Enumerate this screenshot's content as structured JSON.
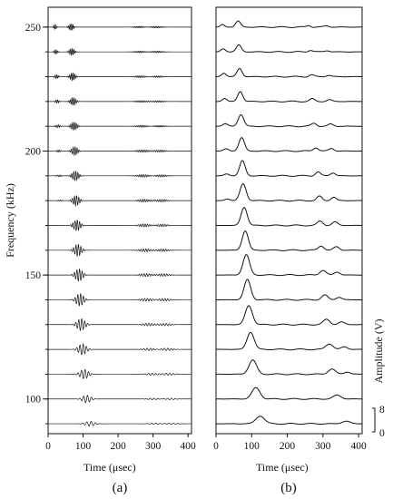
{
  "chart_data": [
    {
      "type": "line",
      "panel_label": "(a)",
      "xlabel": "Time (μsec)",
      "ylabel": "Frequency (kHz)",
      "xlim": [
        0,
        410
      ],
      "ylim": [
        86,
        258
      ],
      "xticks": [
        0,
        100,
        200,
        300,
        400
      ],
      "yticks": [
        100,
        150,
        200,
        250
      ],
      "frequencies_khz": [
        90,
        100,
        110,
        120,
        130,
        140,
        150,
        160,
        170,
        180,
        190,
        200,
        210,
        220,
        230,
        240,
        250
      ],
      "signal": "tone-burst waveforms, one trace per frequency",
      "series": [
        {
          "frequency": 250,
          "packets": [
            {
              "t": 20,
              "amp": 0.25,
              "width": 5
            },
            {
              "t": 66,
              "amp": 0.35,
              "width": 8
            },
            {
              "t": 260,
              "amp": 0.08,
              "width": 20
            },
            {
              "t": 310,
              "amp": 0.08,
              "width": 22
            }
          ]
        },
        {
          "frequency": 240,
          "packets": [
            {
              "t": 22,
              "amp": 0.22,
              "width": 6
            },
            {
              "t": 68,
              "amp": 0.36,
              "width": 9
            },
            {
              "t": 262,
              "amp": 0.08,
              "width": 20
            },
            {
              "t": 312,
              "amp": 0.08,
              "width": 22
            }
          ]
        },
        {
          "frequency": 230,
          "packets": [
            {
              "t": 24,
              "amp": 0.2,
              "width": 7
            },
            {
              "t": 70,
              "amp": 0.38,
              "width": 10
            },
            {
              "t": 264,
              "amp": 0.09,
              "width": 21
            },
            {
              "t": 314,
              "amp": 0.08,
              "width": 22
            }
          ]
        },
        {
          "frequency": 220,
          "packets": [
            {
              "t": 26,
              "amp": 0.18,
              "width": 7
            },
            {
              "t": 72,
              "amp": 0.4,
              "width": 10
            },
            {
              "t": 266,
              "amp": 0.09,
              "width": 21
            },
            {
              "t": 316,
              "amp": 0.08,
              "width": 22
            }
          ]
        },
        {
          "frequency": 210,
          "packets": [
            {
              "t": 28,
              "amp": 0.15,
              "width": 8
            },
            {
              "t": 74,
              "amp": 0.42,
              "width": 11
            },
            {
              "t": 268,
              "amp": 0.1,
              "width": 22
            },
            {
              "t": 318,
              "amp": 0.09,
              "width": 22
            }
          ]
        },
        {
          "frequency": 200,
          "packets": [
            {
              "t": 30,
              "amp": 0.12,
              "width": 8
            },
            {
              "t": 76,
              "amp": 0.44,
              "width": 11
            },
            {
              "t": 270,
              "amp": 0.12,
              "width": 22
            },
            {
              "t": 320,
              "amp": 0.1,
              "width": 22
            }
          ]
        },
        {
          "frequency": 190,
          "packets": [
            {
              "t": 32,
              "amp": 0.1,
              "width": 9
            },
            {
              "t": 78,
              "amp": 0.48,
              "width": 12
            },
            {
              "t": 272,
              "amp": 0.13,
              "width": 22
            },
            {
              "t": 322,
              "amp": 0.11,
              "width": 22
            }
          ]
        },
        {
          "frequency": 180,
          "packets": [
            {
              "t": 34,
              "amp": 0.08,
              "width": 9
            },
            {
              "t": 80,
              "amp": 0.52,
              "width": 12
            },
            {
              "t": 274,
              "amp": 0.14,
              "width": 22
            },
            {
              "t": 324,
              "amp": 0.12,
              "width": 22
            }
          ]
        },
        {
          "frequency": 170,
          "packets": [
            {
              "t": 82,
              "amp": 0.55,
              "width": 13
            },
            {
              "t": 276,
              "amp": 0.15,
              "width": 22
            },
            {
              "t": 326,
              "amp": 0.12,
              "width": 22
            }
          ]
        },
        {
          "frequency": 160,
          "packets": [
            {
              "t": 85,
              "amp": 0.6,
              "width": 13
            },
            {
              "t": 278,
              "amp": 0.15,
              "width": 22
            },
            {
              "t": 328,
              "amp": 0.13,
              "width": 22
            }
          ]
        },
        {
          "frequency": 150,
          "packets": [
            {
              "t": 88,
              "amp": 0.62,
              "width": 14
            },
            {
              "t": 280,
              "amp": 0.15,
              "width": 22
            },
            {
              "t": 330,
              "amp": 0.13,
              "width": 22
            }
          ]
        },
        {
          "frequency": 140,
          "packets": [
            {
              "t": 91,
              "amp": 0.62,
              "width": 14
            },
            {
              "t": 282,
              "amp": 0.14,
              "width": 22
            },
            {
              "t": 332,
              "amp": 0.13,
              "width": 22
            }
          ]
        },
        {
          "frequency": 130,
          "packets": [
            {
              "t": 94,
              "amp": 0.6,
              "width": 15
            },
            {
              "t": 286,
              "amp": 0.13,
              "width": 22
            },
            {
              "t": 336,
              "amp": 0.12,
              "width": 22
            }
          ]
        },
        {
          "frequency": 120,
          "packets": [
            {
              "t": 98,
              "amp": 0.55,
              "width": 15
            },
            {
              "t": 290,
              "amp": 0.12,
              "width": 22
            },
            {
              "t": 340,
              "amp": 0.12,
              "width": 22
            }
          ]
        },
        {
          "frequency": 110,
          "packets": [
            {
              "t": 103,
              "amp": 0.48,
              "width": 16
            },
            {
              "t": 295,
              "amp": 0.1,
              "width": 22
            },
            {
              "t": 345,
              "amp": 0.1,
              "width": 22
            }
          ]
        },
        {
          "frequency": 100,
          "packets": [
            {
              "t": 110,
              "amp": 0.38,
              "width": 16
            },
            {
              "t": 300,
              "amp": 0.08,
              "width": 22
            },
            {
              "t": 350,
              "amp": 0.08,
              "width": 22
            }
          ]
        },
        {
          "frequency": 90,
          "packets": [
            {
              "t": 120,
              "amp": 0.25,
              "width": 17
            },
            {
              "t": 305,
              "amp": 0.06,
              "width": 22
            },
            {
              "t": 355,
              "amp": 0.06,
              "width": 22
            }
          ]
        }
      ]
    },
    {
      "type": "line",
      "panel_label": "(b)",
      "xlabel": "Time (μsec)",
      "ylabel": "Amplitude (V)",
      "xlim": [
        0,
        410
      ],
      "xticks": [
        0,
        100,
        200,
        300,
        400
      ],
      "scale_bar": {
        "tick_labels": [
          "8",
          "0"
        ]
      },
      "signal": "envelope traces, one per frequency (same order as panel a)",
      "series": [
        {
          "frequency": 250,
          "peaks": [
            {
              "t": 18,
              "h": 0.3,
              "w": 8
            },
            {
              "t": 62,
              "h": 0.7,
              "w": 10
            },
            {
              "t": 260,
              "h": 0.2,
              "w": 8
            },
            {
              "t": 310,
              "h": 0.15,
              "w": 10
            }
          ]
        },
        {
          "frequency": 240,
          "peaks": [
            {
              "t": 20,
              "h": 0.35,
              "w": 9
            },
            {
              "t": 64,
              "h": 0.8,
              "w": 10
            },
            {
              "t": 265,
              "h": 0.2,
              "w": 9
            },
            {
              "t": 312,
              "h": 0.15,
              "w": 10
            }
          ]
        },
        {
          "frequency": 230,
          "peaks": [
            {
              "t": 22,
              "h": 0.4,
              "w": 9
            },
            {
              "t": 66,
              "h": 0.95,
              "w": 10
            },
            {
              "t": 268,
              "h": 0.22,
              "w": 9
            },
            {
              "t": 316,
              "h": 0.16,
              "w": 10
            }
          ]
        },
        {
          "frequency": 220,
          "peaks": [
            {
              "t": 24,
              "h": 0.35,
              "w": 9
            },
            {
              "t": 68,
              "h": 1.15,
              "w": 10
            },
            {
              "t": 270,
              "h": 0.3,
              "w": 10
            },
            {
              "t": 318,
              "h": 0.2,
              "w": 10
            }
          ]
        },
        {
          "frequency": 210,
          "peaks": [
            {
              "t": 26,
              "h": 0.3,
              "w": 10
            },
            {
              "t": 70,
              "h": 1.35,
              "w": 11
            },
            {
              "t": 275,
              "h": 0.35,
              "w": 10
            },
            {
              "t": 322,
              "h": 0.25,
              "w": 10
            }
          ]
        },
        {
          "frequency": 200,
          "peaks": [
            {
              "t": 28,
              "h": 0.25,
              "w": 10
            },
            {
              "t": 72,
              "h": 1.55,
              "w": 11
            },
            {
              "t": 280,
              "h": 0.4,
              "w": 10
            },
            {
              "t": 324,
              "h": 0.3,
              "w": 10
            }
          ]
        },
        {
          "frequency": 190,
          "peaks": [
            {
              "t": 30,
              "h": 0.22,
              "w": 10
            },
            {
              "t": 74,
              "h": 1.75,
              "w": 11
            },
            {
              "t": 286,
              "h": 0.45,
              "w": 10
            },
            {
              "t": 328,
              "h": 0.35,
              "w": 10
            }
          ]
        },
        {
          "frequency": 180,
          "peaks": [
            {
              "t": 32,
              "h": 0.2,
              "w": 10
            },
            {
              "t": 76,
              "h": 1.95,
              "w": 12
            },
            {
              "t": 290,
              "h": 0.5,
              "w": 10
            },
            {
              "t": 330,
              "h": 0.4,
              "w": 10
            }
          ]
        },
        {
          "frequency": 170,
          "peaks": [
            {
              "t": 79,
              "h": 2.1,
              "w": 12
            },
            {
              "t": 292,
              "h": 0.5,
              "w": 11
            },
            {
              "t": 334,
              "h": 0.4,
              "w": 11
            }
          ]
        },
        {
          "frequency": 160,
          "peaks": [
            {
              "t": 82,
              "h": 2.25,
              "w": 12
            },
            {
              "t": 295,
              "h": 0.5,
              "w": 11
            },
            {
              "t": 338,
              "h": 0.4,
              "w": 11
            }
          ]
        },
        {
          "frequency": 150,
          "peaks": [
            {
              "t": 85,
              "h": 2.35,
              "w": 13
            },
            {
              "t": 300,
              "h": 0.55,
              "w": 12
            },
            {
              "t": 340,
              "h": 0.35,
              "w": 11
            }
          ]
        },
        {
          "frequency": 140,
          "peaks": [
            {
              "t": 88,
              "h": 2.35,
              "w": 13
            },
            {
              "t": 305,
              "h": 0.55,
              "w": 12
            },
            {
              "t": 345,
              "h": 0.3,
              "w": 11
            }
          ]
        },
        {
          "frequency": 130,
          "peaks": [
            {
              "t": 92,
              "h": 2.2,
              "w": 14
            },
            {
              "t": 310,
              "h": 0.6,
              "w": 13
            },
            {
              "t": 352,
              "h": 0.3,
              "w": 12
            }
          ]
        },
        {
          "frequency": 120,
          "peaks": [
            {
              "t": 97,
              "h": 2.0,
              "w": 14
            },
            {
              "t": 318,
              "h": 0.65,
              "w": 14
            },
            {
              "t": 360,
              "h": 0.3,
              "w": 12
            }
          ]
        },
        {
          "frequency": 110,
          "peaks": [
            {
              "t": 103,
              "h": 1.65,
              "w": 15
            },
            {
              "t": 325,
              "h": 0.6,
              "w": 14
            },
            {
              "t": 368,
              "h": 0.25,
              "w": 12
            }
          ]
        },
        {
          "frequency": 100,
          "peaks": [
            {
              "t": 112,
              "h": 1.3,
              "w": 16
            },
            {
              "t": 340,
              "h": 0.45,
              "w": 15
            }
          ]
        },
        {
          "frequency": 90,
          "peaks": [
            {
              "t": 124,
              "h": 0.9,
              "w": 17
            },
            {
              "t": 365,
              "h": 0.3,
              "w": 16
            }
          ]
        }
      ]
    }
  ]
}
